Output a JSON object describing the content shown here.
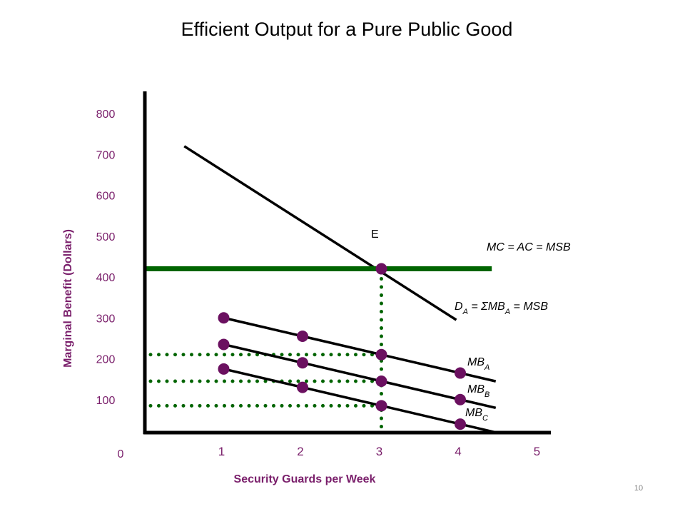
{
  "slide": {
    "title": "Efficient Output for a Pure Public Good",
    "page_number": "10"
  },
  "colors": {
    "accent": "#7a1f6b",
    "cost_line": "#006400",
    "curves": "#000000",
    "points": "#6b1060"
  },
  "chart_data": {
    "type": "line",
    "title": "Efficient Output for a Pure Public Good",
    "xlabel": "Security Guards per Week",
    "ylabel": "Marginal Benefit (Dollars)",
    "x_ticks": [
      1,
      2,
      3,
      4,
      5
    ],
    "y_ticks": [
      100,
      200,
      300,
      400,
      500,
      600,
      700,
      800
    ],
    "origin_label": "0",
    "xlim": [
      0,
      5.3
    ],
    "ylim": [
      0,
      820
    ],
    "grid": false,
    "series": [
      {
        "name": "MB_A",
        "x": [
          1,
          2,
          3,
          4
        ],
        "y": [
          300,
          255,
          210,
          165
        ],
        "markers": true
      },
      {
        "name": "MB_B",
        "x": [
          1,
          2,
          3,
          4
        ],
        "y": [
          235,
          190,
          145,
          100
        ],
        "markers": true
      },
      {
        "name": "MB_C",
        "x": [
          1,
          2,
          3,
          4
        ],
        "y": [
          175,
          130,
          85,
          40
        ],
        "markers": true
      },
      {
        "name": "D_A",
        "x": [
          0.5,
          3.95
        ],
        "y": [
          720,
          295
        ],
        "markers": false
      },
      {
        "name": "MC = AC = MSB",
        "x": [
          0,
          4.4
        ],
        "y": [
          420,
          420
        ],
        "markers": false
      }
    ],
    "guides": [
      {
        "type": "vertical",
        "x": 3,
        "y_from": 0,
        "y_to": 420
      },
      {
        "type": "horizontal",
        "y": 210,
        "x_from": 0,
        "x_to": 3
      },
      {
        "type": "horizontal",
        "y": 145,
        "x_from": 0,
        "x_to": 3
      },
      {
        "type": "horizontal",
        "y": 85,
        "x_from": 0,
        "x_to": 3
      }
    ],
    "equilibrium": {
      "label": "E",
      "x": 3,
      "y": 420
    },
    "curve_labels": {
      "mc": "MC = AC = MSB",
      "demand": "D_A = ΣMB_A = MSB",
      "mb_a": "MB_A",
      "mb_b": "MB_B",
      "mb_c": "MB_C"
    }
  }
}
